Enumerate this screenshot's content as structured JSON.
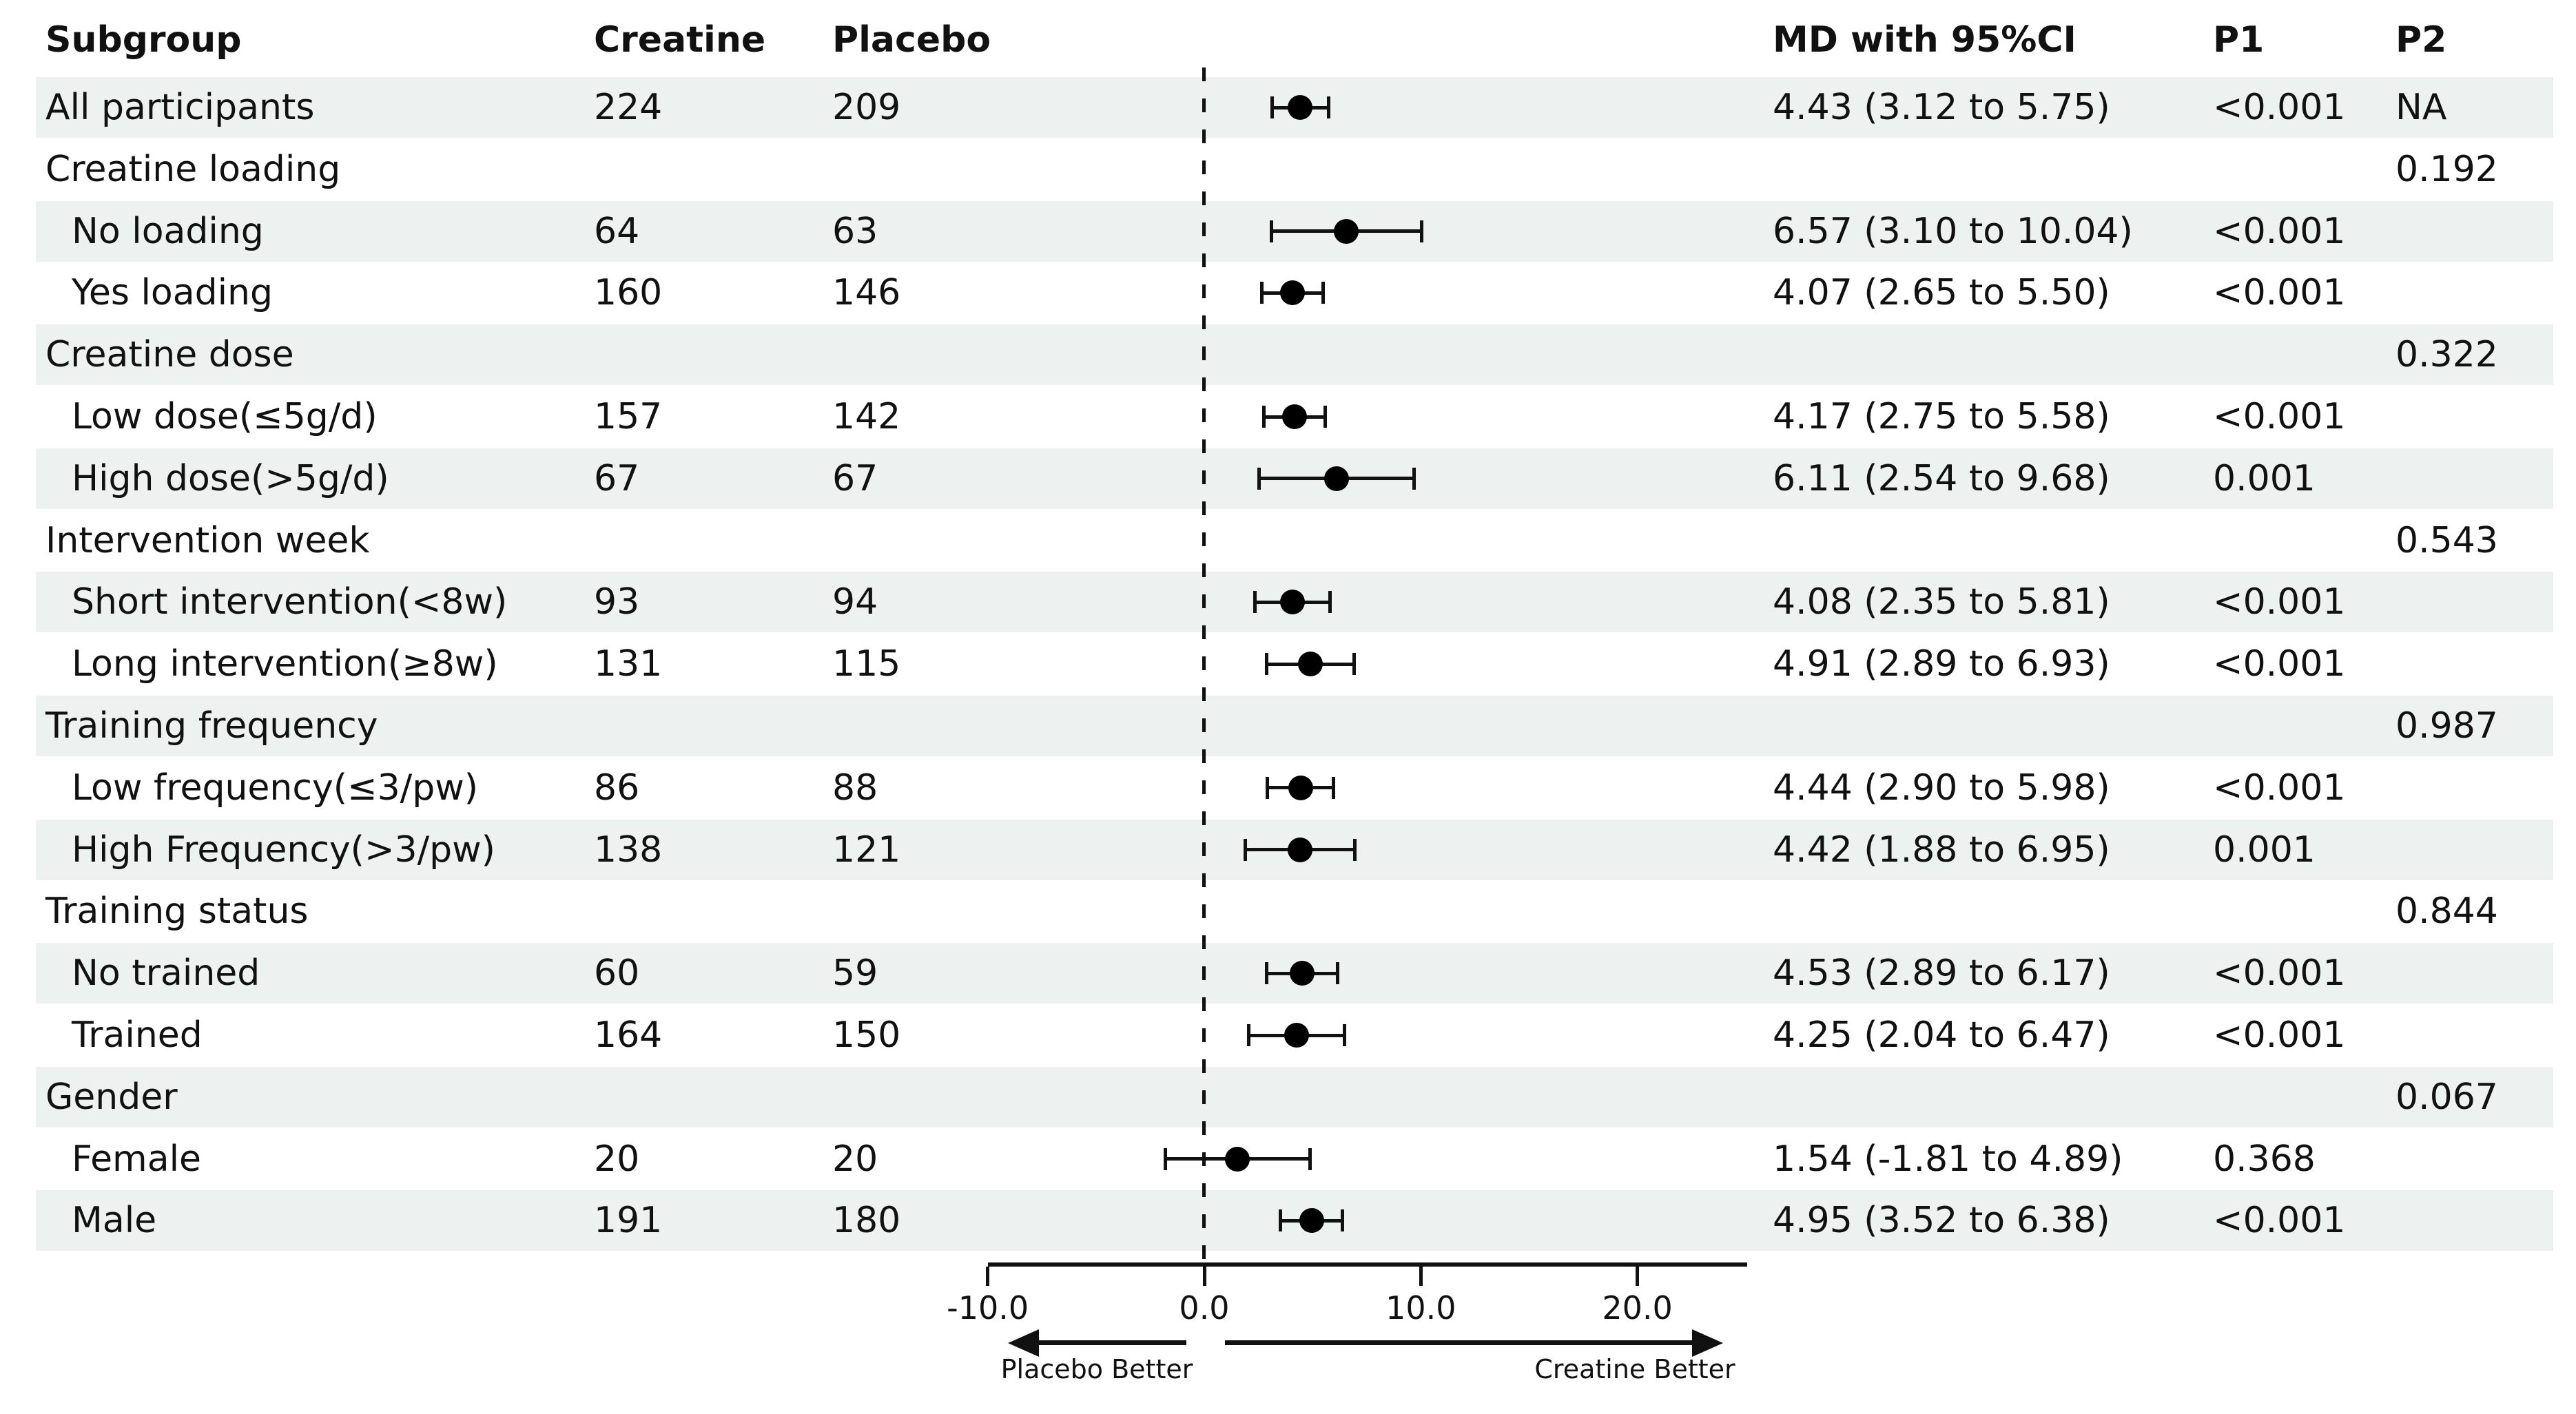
{
  "header": {
    "subgroup": "Subgroup",
    "creatine": "Creatine",
    "placebo": "Placebo",
    "md_ci": "MD with 95%CI",
    "p1": "P1",
    "p2": "P2"
  },
  "axis": {
    "tick_labels": [
      "-10.0",
      "0.0",
      "10.0",
      "20.0"
    ],
    "tick_values": [
      -10,
      0,
      10,
      20
    ],
    "left_arrow_label": "Placebo Better",
    "right_arrow_label": "Creatine Better"
  },
  "colors": {
    "band": "#edf1f0",
    "text": "#111111",
    "marker": "#000000"
  },
  "chart_data": {
    "type": "scatter",
    "subtype": "forest-plot",
    "title": "",
    "xlabel": "",
    "xlim": [
      -10.3,
      25.1
    ],
    "x_ticks": [
      -10,
      0,
      10,
      20
    ],
    "x_tick_labels": [
      "-10.0",
      "0.0",
      "10.0",
      "20.0"
    ],
    "zero_reference_line": 0,
    "legend": null,
    "grid": false,
    "annotations": [
      "Placebo Better",
      "Creatine Better"
    ],
    "rows": [
      {
        "label": "All participants",
        "indent": 0,
        "creatine": "224",
        "placebo": "209",
        "md": 4.43,
        "lo": 3.12,
        "hi": 5.75,
        "md_ci": "4.43 (3.12 to 5.75)",
        "p1": "<0.001",
        "p2": "NA",
        "shaded": true
      },
      {
        "label": "Creatine loading",
        "indent": 0,
        "creatine": "",
        "placebo": "",
        "md": null,
        "lo": null,
        "hi": null,
        "md_ci": "",
        "p1": "",
        "p2": "0.192",
        "shaded": false
      },
      {
        "label": "No loading",
        "indent": 1,
        "creatine": "64",
        "placebo": "63",
        "md": 6.57,
        "lo": 3.1,
        "hi": 10.04,
        "md_ci": "6.57 (3.10 to 10.04)",
        "p1": "<0.001",
        "p2": "",
        "shaded": true
      },
      {
        "label": "Yes loading",
        "indent": 1,
        "creatine": "160",
        "placebo": "146",
        "md": 4.07,
        "lo": 2.65,
        "hi": 5.5,
        "md_ci": "4.07 (2.65 to 5.50)",
        "p1": "<0.001",
        "p2": "",
        "shaded": false
      },
      {
        "label": "Creatine dose",
        "indent": 0,
        "creatine": "",
        "placebo": "",
        "md": null,
        "lo": null,
        "hi": null,
        "md_ci": "",
        "p1": "",
        "p2": "0.322",
        "shaded": true
      },
      {
        "label": "Low dose(≤5g/d)",
        "indent": 1,
        "creatine": "157",
        "placebo": "142",
        "md": 4.17,
        "lo": 2.75,
        "hi": 5.58,
        "md_ci": "4.17 (2.75 to 5.58)",
        "p1": "<0.001",
        "p2": "",
        "shaded": false
      },
      {
        "label": "High dose(>5g/d)",
        "indent": 1,
        "creatine": "67",
        "placebo": "67",
        "md": 6.11,
        "lo": 2.54,
        "hi": 9.68,
        "md_ci": "6.11 (2.54 to 9.68)",
        "p1": "0.001",
        "p2": "",
        "shaded": true
      },
      {
        "label": "Intervention week",
        "indent": 0,
        "creatine": "",
        "placebo": "",
        "md": null,
        "lo": null,
        "hi": null,
        "md_ci": "",
        "p1": "",
        "p2": "0.543",
        "shaded": false
      },
      {
        "label": "Short intervention(<8w)",
        "indent": 1,
        "creatine": "93",
        "placebo": "94",
        "md": 4.08,
        "lo": 2.35,
        "hi": 5.81,
        "md_ci": "4.08 (2.35 to 5.81)",
        "p1": "<0.001",
        "p2": "",
        "shaded": true
      },
      {
        "label": "Long intervention(≥8w)",
        "indent": 1,
        "creatine": "131",
        "placebo": "115",
        "md": 4.91,
        "lo": 2.89,
        "hi": 6.93,
        "md_ci": "4.91 (2.89 to 6.93)",
        "p1": "<0.001",
        "p2": "",
        "shaded": false
      },
      {
        "label": "Training frequency",
        "indent": 0,
        "creatine": "",
        "placebo": "",
        "md": null,
        "lo": null,
        "hi": null,
        "md_ci": "",
        "p1": "",
        "p2": "0.987",
        "shaded": true
      },
      {
        "label": "Low frequency(≤3/pw)",
        "indent": 1,
        "creatine": "86",
        "placebo": "88",
        "md": 4.44,
        "lo": 2.9,
        "hi": 5.98,
        "md_ci": "4.44 (2.90 to 5.98)",
        "p1": "<0.001",
        "p2": "",
        "shaded": false
      },
      {
        "label": "High Frequency(>3/pw)",
        "indent": 1,
        "creatine": "138",
        "placebo": "121",
        "md": 4.42,
        "lo": 1.88,
        "hi": 6.95,
        "md_ci": "4.42 (1.88 to 6.95)",
        "p1": "0.001",
        "p2": "",
        "shaded": true
      },
      {
        "label": "Training status",
        "indent": 0,
        "creatine": "",
        "placebo": "",
        "md": null,
        "lo": null,
        "hi": null,
        "md_ci": "",
        "p1": "",
        "p2": "0.844",
        "shaded": false
      },
      {
        "label": "No trained",
        "indent": 1,
        "creatine": "60",
        "placebo": "59",
        "md": 4.53,
        "lo": 2.89,
        "hi": 6.17,
        "md_ci": "4.53 (2.89 to 6.17)",
        "p1": "<0.001",
        "p2": "",
        "shaded": true
      },
      {
        "label": "Trained",
        "indent": 1,
        "creatine": "164",
        "placebo": "150",
        "md": 4.25,
        "lo": 2.04,
        "hi": 6.47,
        "md_ci": "4.25 (2.04 to 6.47)",
        "p1": "<0.001",
        "p2": "",
        "shaded": false
      },
      {
        "label": "Gender",
        "indent": 0,
        "creatine": "",
        "placebo": "",
        "md": null,
        "lo": null,
        "hi": null,
        "md_ci": "",
        "p1": "",
        "p2": "0.067",
        "shaded": true
      },
      {
        "label": "Female",
        "indent": 1,
        "creatine": "20",
        "placebo": "20",
        "md": 1.54,
        "lo": -1.81,
        "hi": 4.89,
        "md_ci": "1.54 (-1.81 to 4.89)",
        "p1": "0.368",
        "p2": "",
        "shaded": false
      },
      {
        "label": "Male",
        "indent": 1,
        "creatine": "191",
        "placebo": "180",
        "md": 4.95,
        "lo": 3.52,
        "hi": 6.38,
        "md_ci": "4.95 (3.52 to 6.38)",
        "p1": "<0.001",
        "p2": "",
        "shaded": true
      }
    ]
  }
}
